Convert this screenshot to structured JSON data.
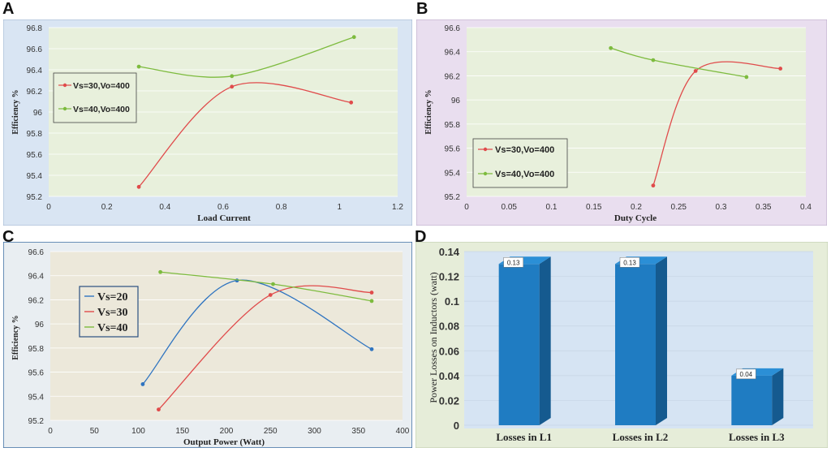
{
  "panels": {
    "A": {
      "letter": "A",
      "chart_data": {
        "type": "line",
        "title": "",
        "xlabel": "Load Current",
        "ylabel": "Efficiency %",
        "xlim": [
          0,
          1.2
        ],
        "ylim": [
          95.2,
          96.8
        ],
        "xticks": [
          0,
          0.2,
          0.4,
          0.6,
          0.8,
          1,
          1.2
        ],
        "yticks": [
          95.2,
          95.4,
          95.6,
          95.8,
          96,
          96.2,
          96.4,
          96.6,
          96.8
        ],
        "legend": "left",
        "series": [
          {
            "name": "Vs=30,Vo=400",
            "color": "#e04b4b",
            "x": [
              0.31,
              0.63,
              1.04
            ],
            "y": [
              95.29,
              96.24,
              96.09
            ]
          },
          {
            "name": "Vs=40,Vo=400",
            "color": "#7dbb3e",
            "x": [
              0.31,
              0.63,
              1.05
            ],
            "y": [
              96.43,
              96.34,
              96.71
            ]
          }
        ]
      }
    },
    "B": {
      "letter": "B",
      "chart_data": {
        "type": "line",
        "title": "",
        "xlabel": "Duty Cycle",
        "ylabel": "Efficiency %",
        "xlim": [
          0,
          0.4
        ],
        "ylim": [
          95.2,
          96.6
        ],
        "xticks": [
          0,
          0.05,
          0.1,
          0.15,
          0.2,
          0.25,
          0.3,
          0.35,
          0.4
        ],
        "yticks": [
          95.2,
          95.4,
          95.6,
          95.8,
          96,
          96.2,
          96.4,
          96.6
        ],
        "legend": "bottom-left",
        "series": [
          {
            "name": "Vs=30,Vo=400",
            "color": "#e04b4b",
            "x": [
              0.22,
              0.27,
              0.37
            ],
            "y": [
              95.29,
              96.24,
              96.26
            ]
          },
          {
            "name": "Vs=40,Vo=400",
            "color": "#7dbb3e",
            "x": [
              0.17,
              0.22,
              0.33
            ],
            "y": [
              96.43,
              96.33,
              96.19
            ]
          }
        ]
      }
    },
    "C": {
      "letter": "C",
      "chart_data": {
        "type": "line",
        "title": "",
        "xlabel": "Output Power (Watt)",
        "ylabel": "Efficiency %",
        "xlim": [
          0,
          400
        ],
        "ylim": [
          95.2,
          96.6
        ],
        "xticks": [
          0,
          50,
          100,
          150,
          200,
          250,
          300,
          350,
          400
        ],
        "yticks": [
          95.2,
          95.4,
          95.6,
          95.8,
          96,
          96.2,
          96.4,
          96.6
        ],
        "legend": "left",
        "series": [
          {
            "name": "Vs=20",
            "color": "#2f74c0",
            "x": [
              105,
              212,
              365
            ],
            "y": [
              95.5,
              96.36,
              95.79
            ]
          },
          {
            "name": "Vs=30",
            "color": "#e04b4b",
            "x": [
              123,
              250,
              365
            ],
            "y": [
              95.29,
              96.24,
              96.26
            ]
          },
          {
            "name": "Vs=40",
            "color": "#7dbb3e",
            "x": [
              125,
              253,
              365
            ],
            "y": [
              96.43,
              96.33,
              96.19
            ]
          }
        ]
      }
    },
    "D": {
      "letter": "D",
      "chart_data": {
        "type": "bar",
        "title": "",
        "xlabel": "",
        "ylabel": "Power Losses on Inductors (watt)",
        "ylim": [
          0,
          0.14
        ],
        "yticks": [
          "0",
          "0.02",
          "0.04",
          "0.06",
          "0.08",
          "0.1",
          "0.12",
          "0.14"
        ],
        "categories": [
          "Losses in L1",
          "Losses in L2",
          "Losses in L3"
        ],
        "values": [
          0.13,
          0.13,
          0.04
        ],
        "value_labels": [
          "0.13",
          "0.13",
          "0.04"
        ],
        "bar_color": "#1f7cc2"
      }
    }
  }
}
